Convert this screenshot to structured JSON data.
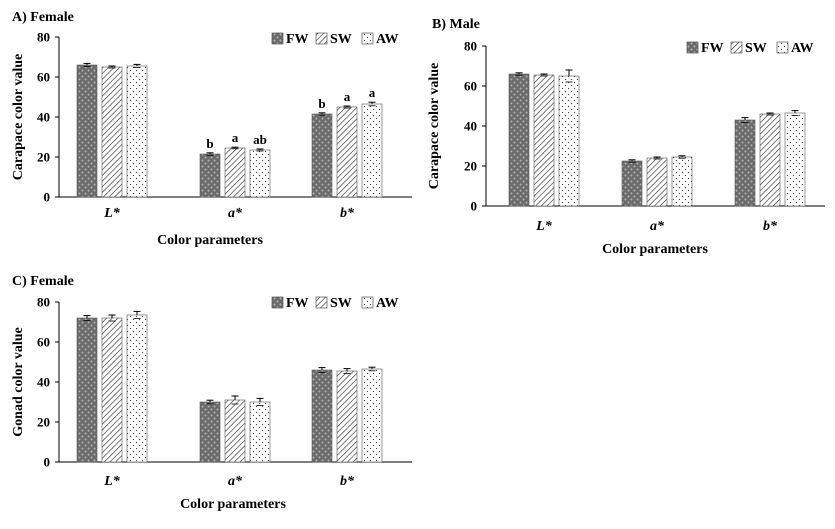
{
  "legend_colors": {
    "FW": "#666666",
    "SW": "#ffffff",
    "AW": "#ffffff"
  },
  "chart_data": [
    {
      "type": "bar",
      "title": "A)  Female",
      "xlabel": "Color parameters",
      "ylabel": "Carapace color value",
      "categories": [
        "L*",
        "a*",
        "b*"
      ],
      "ylim": [
        0,
        80
      ],
      "yticks": [
        0,
        20,
        40,
        60,
        80
      ],
      "legend_position": "top-right",
      "series": [
        {
          "name": "FW",
          "values": [
            66,
            21.5,
            41.5
          ],
          "errors": [
            0.8,
            0.6,
            0.6
          ],
          "labels": [
            "",
            "b",
            "b"
          ]
        },
        {
          "name": "SW",
          "values": [
            65,
            24.5,
            45
          ],
          "errors": [
            0.5,
            0.4,
            0.5
          ],
          "labels": [
            "",
            "a",
            "a"
          ]
        },
        {
          "name": "AW",
          "values": [
            65.5,
            23.5,
            46.5
          ],
          "errors": [
            0.8,
            0.5,
            0.9
          ],
          "labels": [
            "",
            "ab",
            "a"
          ]
        }
      ]
    },
    {
      "type": "bar",
      "title": "B) Male",
      "xlabel": "Color parameters",
      "ylabel": "Carapace color value",
      "categories": [
        "L*",
        "a*",
        "b*"
      ],
      "ylim": [
        0,
        80
      ],
      "yticks": [
        0,
        20,
        40,
        60,
        80
      ],
      "legend_position": "top-right",
      "series": [
        {
          "name": "FW",
          "values": [
            66,
            22.5,
            43
          ],
          "errors": [
            0.6,
            0.6,
            1.2
          ],
          "labels": [
            "",
            "",
            ""
          ]
        },
        {
          "name": "SW",
          "values": [
            65.5,
            24,
            46
          ],
          "errors": [
            0.5,
            0.5,
            0.5
          ],
          "labels": [
            "",
            "",
            ""
          ]
        },
        {
          "name": "AW",
          "values": [
            65,
            24.5,
            46.5
          ],
          "errors": [
            3,
            0.6,
            1.2
          ],
          "labels": [
            "",
            "",
            ""
          ]
        }
      ]
    },
    {
      "type": "bar",
      "title": "C) Female",
      "xlabel": "Color parameters",
      "ylabel": "Gonad color value",
      "categories": [
        "L*",
        "a*",
        "b*"
      ],
      "ylim": [
        0,
        80
      ],
      "yticks": [
        0,
        20,
        40,
        60,
        80
      ],
      "legend_position": "top-right",
      "series": [
        {
          "name": "FW",
          "values": [
            72,
            30,
            46
          ],
          "errors": [
            1.2,
            0.9,
            1.2
          ],
          "labels": [
            "",
            "",
            ""
          ]
        },
        {
          "name": "SW",
          "values": [
            72,
            31,
            45.5
          ],
          "errors": [
            1.5,
            2,
            1.2
          ],
          "labels": [
            "",
            "",
            ""
          ]
        },
        {
          "name": "AW",
          "values": [
            73.5,
            30,
            46.5
          ],
          "errors": [
            1.8,
            1.8,
            0.9
          ],
          "labels": [
            "",
            "",
            ""
          ]
        }
      ]
    }
  ]
}
